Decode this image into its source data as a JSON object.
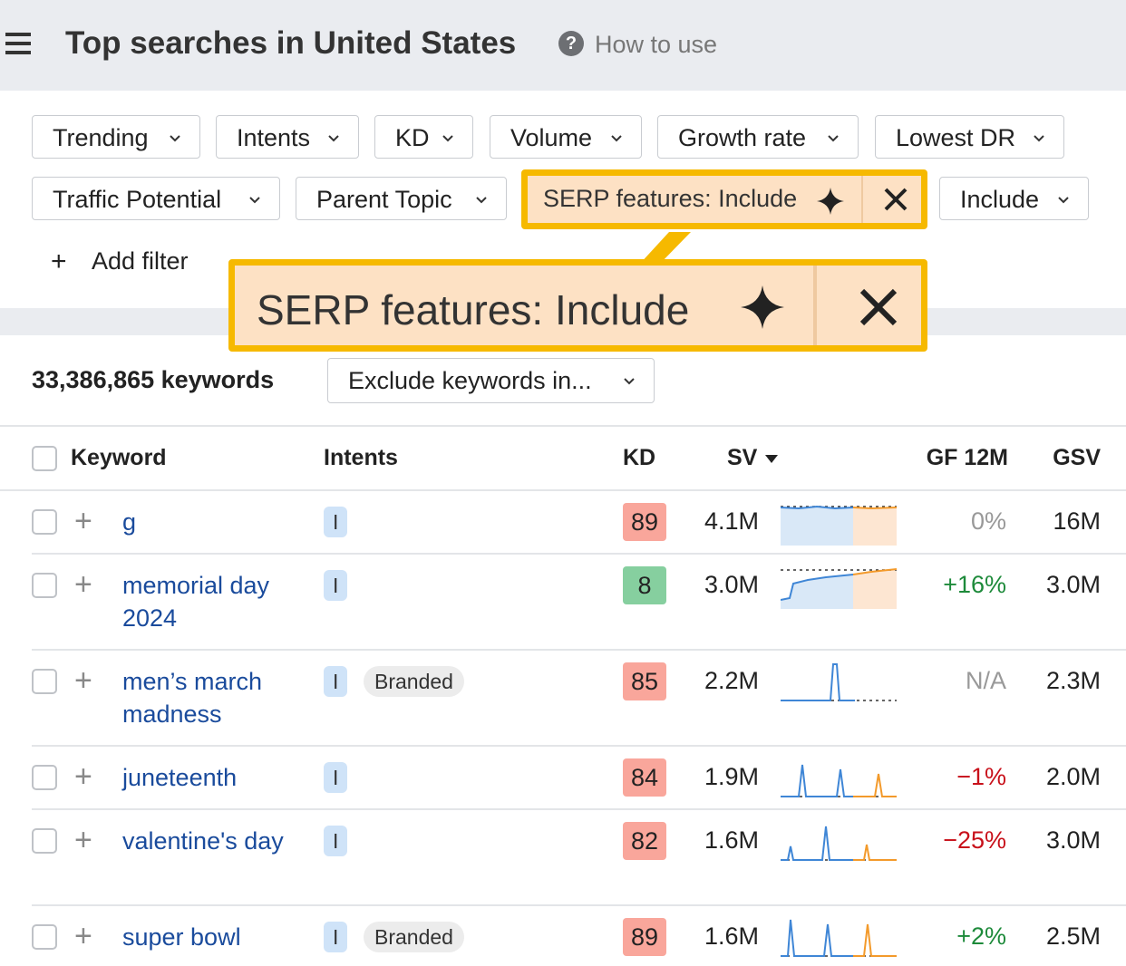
{
  "header": {
    "title": "Top searches in United States",
    "help": "How to use"
  },
  "filters": [
    "Trending",
    "Intents",
    "KD",
    "Volume",
    "Growth rate",
    "Lowest DR",
    "Traffic Potential",
    "Parent Topic",
    "SERP features: Include",
    "Include"
  ],
  "add_filter": "Add filter",
  "callout": "SERP features: Include",
  "summary": {
    "count": "33,386,865 keywords",
    "exclude": "Exclude keywords in..."
  },
  "table": {
    "columns": [
      "Keyword",
      "Intents",
      "KD",
      "SV",
      "GF 12M",
      "GSV"
    ],
    "rows": [
      {
        "keyword": "g",
        "intents": [
          "I"
        ],
        "kd": 89,
        "sv": "4.1M",
        "gf": "0%",
        "gsv": "16M"
      },
      {
        "keyword": "memorial day 2024",
        "intents": [
          "I"
        ],
        "kd": 8,
        "sv": "3.0M",
        "gf": "+16%",
        "gsv": "3.0M"
      },
      {
        "keyword": "men’s march madness",
        "intents": [
          "I",
          "Branded"
        ],
        "kd": 85,
        "sv": "2.2M",
        "gf": "N/A",
        "gsv": "2.3M"
      },
      {
        "keyword": "juneteenth",
        "intents": [
          "I"
        ],
        "kd": 84,
        "sv": "1.9M",
        "gf": "−1%",
        "gsv": "2.0M"
      },
      {
        "keyword": "valentine's day",
        "intents": [
          "I"
        ],
        "kd": 82,
        "sv": "1.6M",
        "gf": "−25%",
        "gsv": "3.0M"
      },
      {
        "keyword": "super bowl",
        "intents": [
          "I",
          "Branded"
        ],
        "kd": 89,
        "sv": "1.6M",
        "gf": "+2%",
        "gsv": "2.5M"
      }
    ]
  }
}
